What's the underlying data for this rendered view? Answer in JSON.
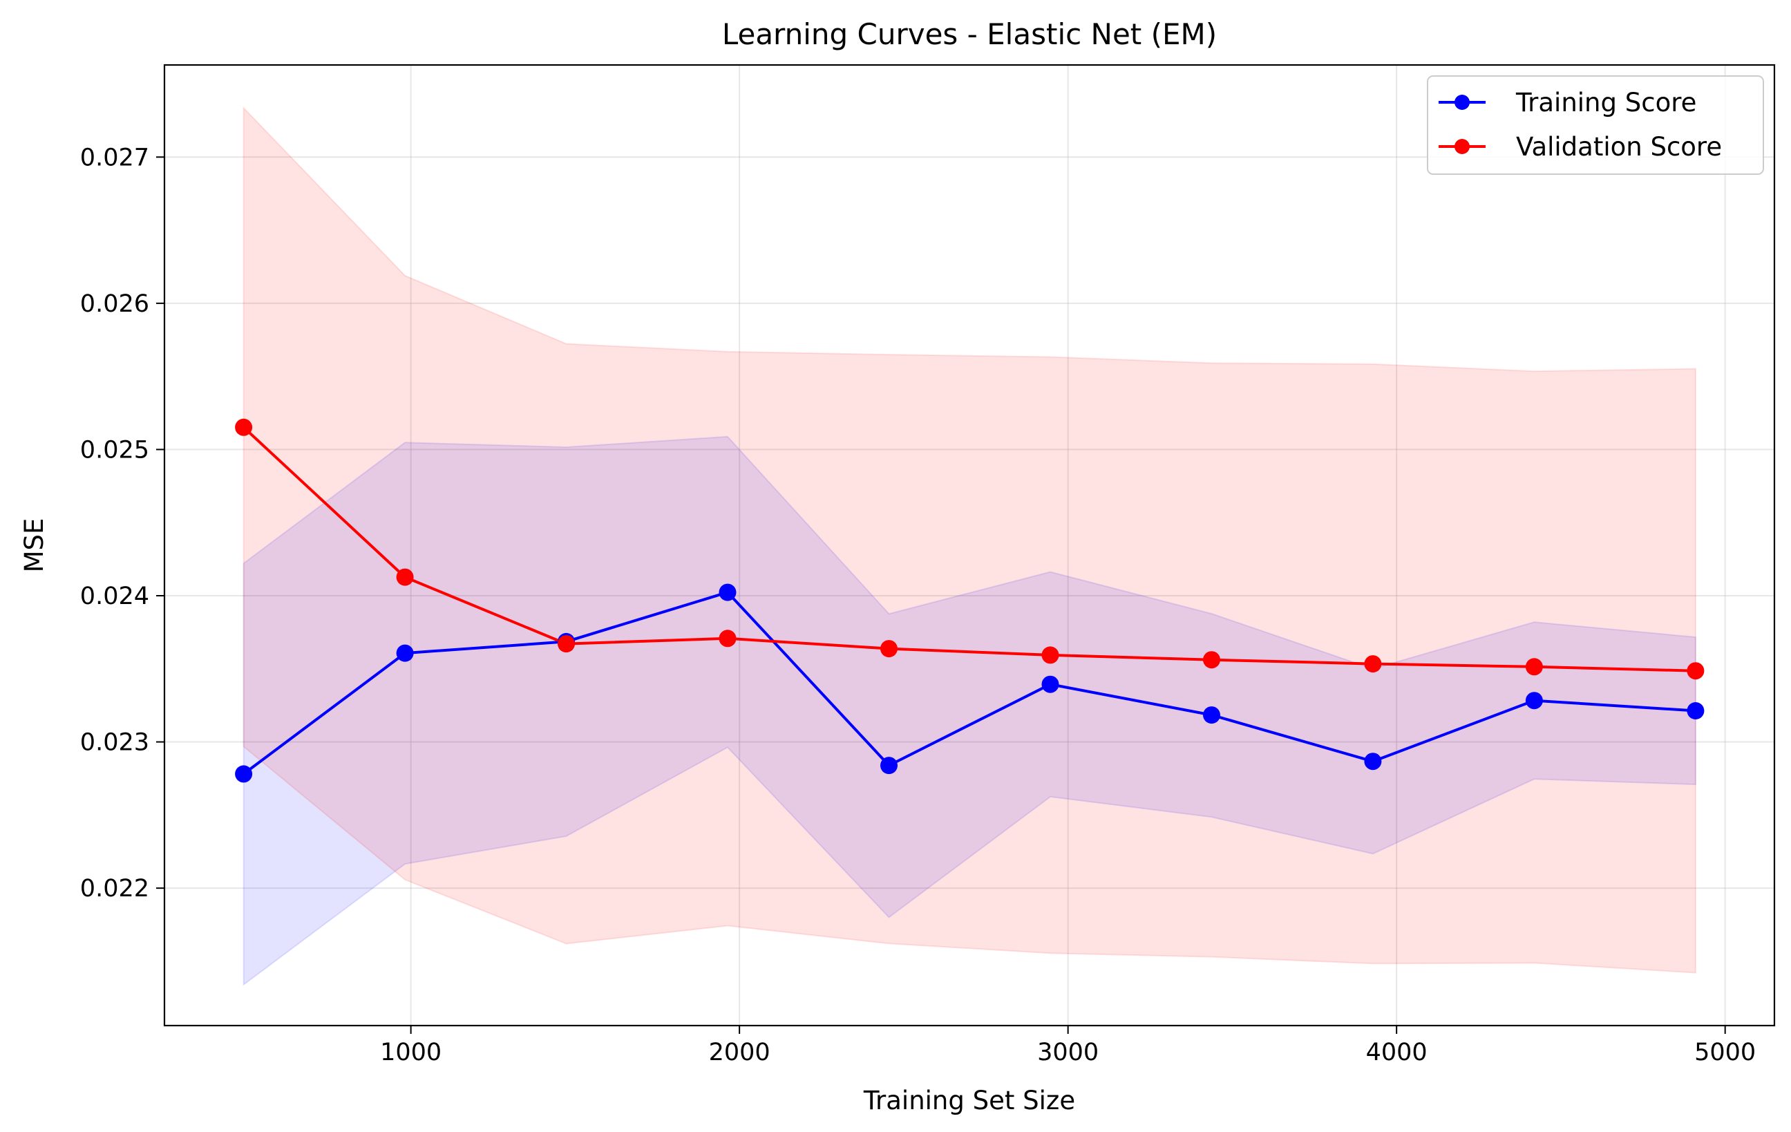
{
  "chart_data": {
    "type": "line",
    "title": "Learning Curves - Elastic Net (EM)",
    "xlabel": "Training Set Size",
    "ylabel": "MSE",
    "xlim": [
      250,
      5150
    ],
    "ylim": [
      0.02106,
      0.02763
    ],
    "xticks": [
      1000,
      2000,
      3000,
      4000,
      5000
    ],
    "xtick_labels": [
      "1000",
      "2000",
      "3000",
      "4000",
      "5000"
    ],
    "yticks": [
      0.022,
      0.023,
      0.024,
      0.025,
      0.026,
      0.027
    ],
    "ytick_labels": [
      "0.022",
      "0.023",
      "0.024",
      "0.025",
      "0.026",
      "0.027"
    ],
    "grid": true,
    "legend_position": "top-right",
    "x": [
      491,
      982,
      1473,
      1964,
      2455,
      2946,
      3437,
      3928,
      4419,
      4910
    ],
    "series": [
      {
        "name": "Training Score",
        "color": "#0000ff",
        "band_color": "#0000ff",
        "values": [
          0.022781,
          0.023607,
          0.023686,
          0.024023,
          0.022839,
          0.023394,
          0.023184,
          0.022867,
          0.023283,
          0.023213
        ],
        "upper": [
          0.024221,
          0.025048,
          0.025016,
          0.025088,
          0.023876,
          0.024163,
          0.023877,
          0.0235,
          0.02382,
          0.023717
        ],
        "lower": [
          0.02134,
          0.022165,
          0.022355,
          0.022963,
          0.0218,
          0.022625,
          0.022486,
          0.022235,
          0.022746,
          0.022709
        ]
      },
      {
        "name": "Validation Score",
        "color": "#ff0000",
        "band_color": "#ff0000",
        "values": [
          0.025152,
          0.024127,
          0.023671,
          0.023708,
          0.023638,
          0.023594,
          0.023562,
          0.023534,
          0.023514,
          0.023486
        ],
        "upper": [
          0.027336,
          0.026189,
          0.025723,
          0.025669,
          0.025649,
          0.025633,
          0.025591,
          0.025584,
          0.025535,
          0.025552
        ],
        "lower": [
          0.022968,
          0.022058,
          0.02162,
          0.021743,
          0.021621,
          0.021555,
          0.02153,
          0.021484,
          0.021488,
          0.021421
        ]
      }
    ]
  }
}
